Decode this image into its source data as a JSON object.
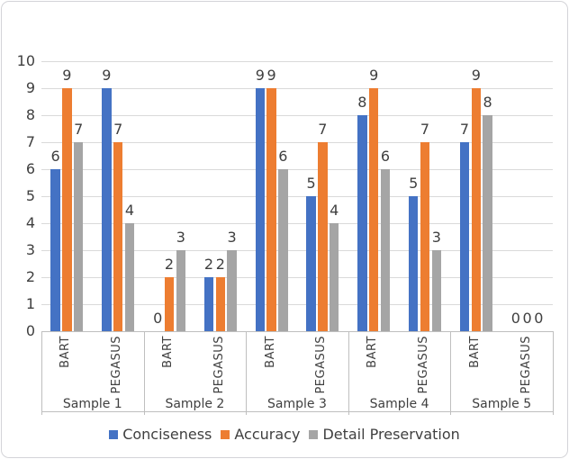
{
  "chart_data": {
    "type": "bar",
    "title": "",
    "ylabel": "",
    "xlabel": "",
    "ylim": [
      0,
      10
    ],
    "yticks": [
      0,
      1,
      2,
      3,
      4,
      5,
      6,
      7,
      8,
      9,
      10
    ],
    "grid": true,
    "legend_position": "bottom",
    "series": [
      {
        "name": "Conciseness",
        "color": "#4472C4"
      },
      {
        "name": "Accuracy",
        "color": "#ED7D31"
      },
      {
        "name": "Detail Preservation",
        "color": "#A5A5A5"
      }
    ],
    "groups": [
      {
        "label": "Sample 1",
        "models": [
          {
            "label": "BART",
            "values": [
              6,
              9,
              7
            ]
          },
          {
            "label": "PEGASUS",
            "values": [
              9,
              7,
              4
            ]
          }
        ]
      },
      {
        "label": "Sample 2",
        "models": [
          {
            "label": "BART",
            "values": [
              0,
              2,
              3
            ]
          },
          {
            "label": "PEGASUS",
            "values": [
              2,
              2,
              3
            ]
          }
        ]
      },
      {
        "label": "Sample 3",
        "models": [
          {
            "label": "BART",
            "values": [
              9,
              9,
              6
            ]
          },
          {
            "label": "PEGASUS",
            "values": [
              5,
              7,
              4
            ]
          }
        ]
      },
      {
        "label": "Sample 4",
        "models": [
          {
            "label": "BART",
            "values": [
              8,
              9,
              6
            ]
          },
          {
            "label": "PEGASUS",
            "values": [
              5,
              7,
              3
            ]
          }
        ]
      },
      {
        "label": "Sample 5",
        "models": [
          {
            "label": "BART",
            "values": [
              7,
              9,
              8
            ]
          },
          {
            "label": "PEGASUS",
            "values": [
              0,
              0,
              0
            ]
          }
        ]
      }
    ]
  },
  "colors": {
    "gridline": "#d9d9d9",
    "axis_line": "#bfbfbf",
    "text": "#3f3f3f",
    "frame_border": "#d4d4d8"
  }
}
